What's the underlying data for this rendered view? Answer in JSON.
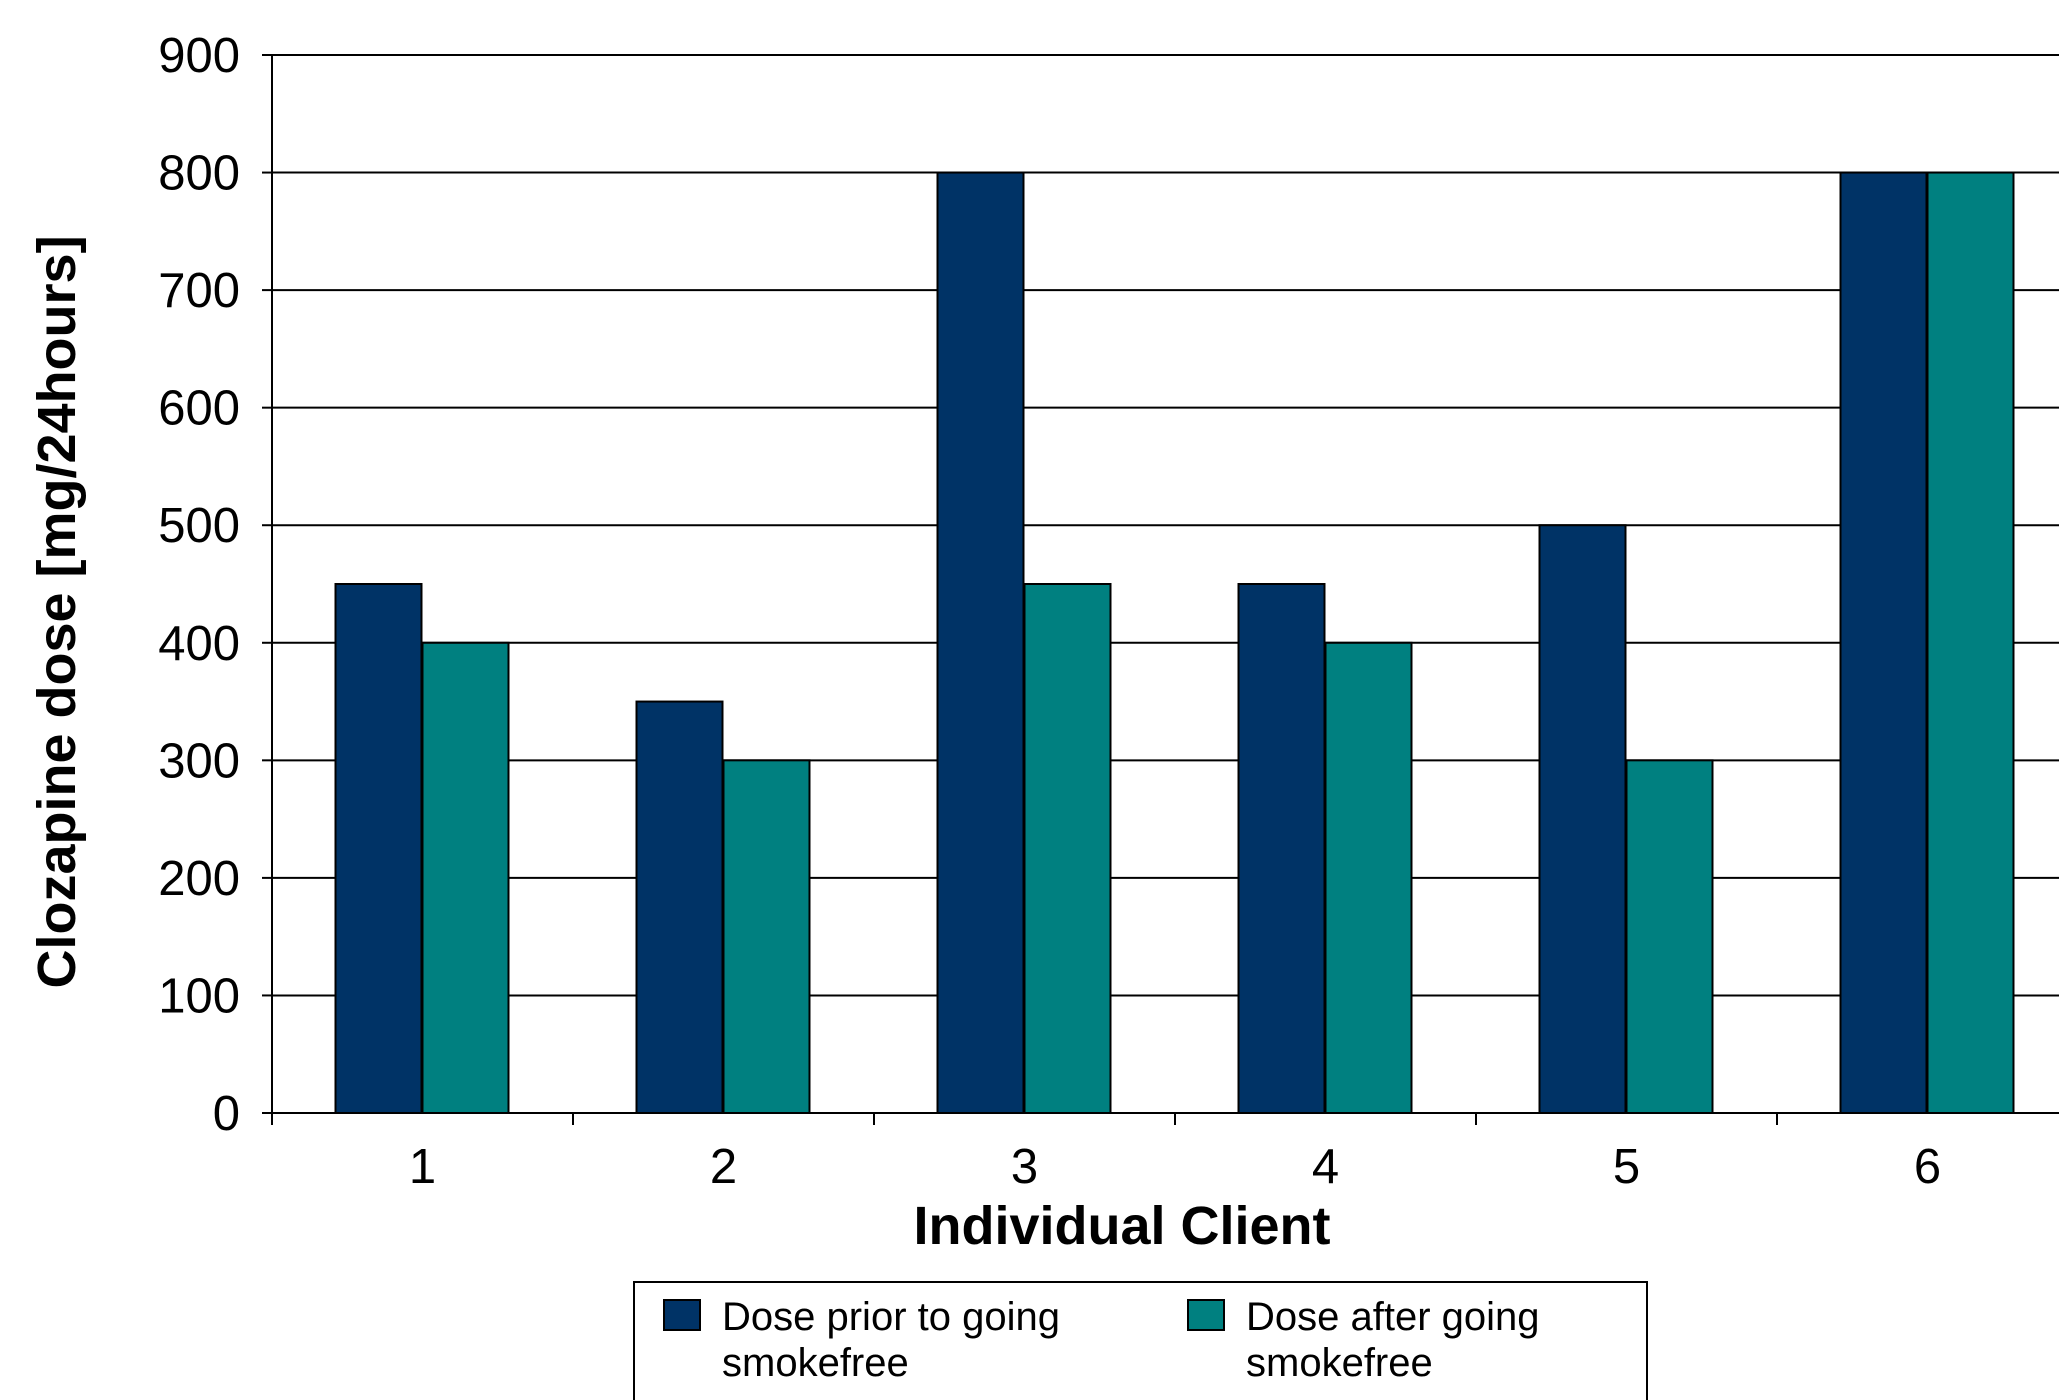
{
  "chart_data": {
    "type": "bar",
    "title": "",
    "xlabel": "Individual Client",
    "ylabel": "Clozapine dose [mg/24hours]",
    "categories": [
      "1",
      "2",
      "3",
      "4",
      "5",
      "6"
    ],
    "series": [
      {
        "name": "Dose prior to going smokefree",
        "legend_lines": [
          "Dose prior to going",
          "smokefree"
        ],
        "color": "#003366",
        "values": [
          450,
          350,
          800,
          450,
          500,
          800
        ]
      },
      {
        "name": "Dose after going smokefree",
        "legend_lines": [
          "Dose after going",
          "smokefree"
        ],
        "color": "#008080",
        "values": [
          400,
          300,
          450,
          400,
          300,
          800
        ]
      }
    ],
    "ylim": [
      0,
      900
    ],
    "yticks": [
      0,
      100,
      200,
      300,
      400,
      500,
      600,
      700,
      800,
      900
    ],
    "grid": true,
    "legend_position": "bottom"
  }
}
